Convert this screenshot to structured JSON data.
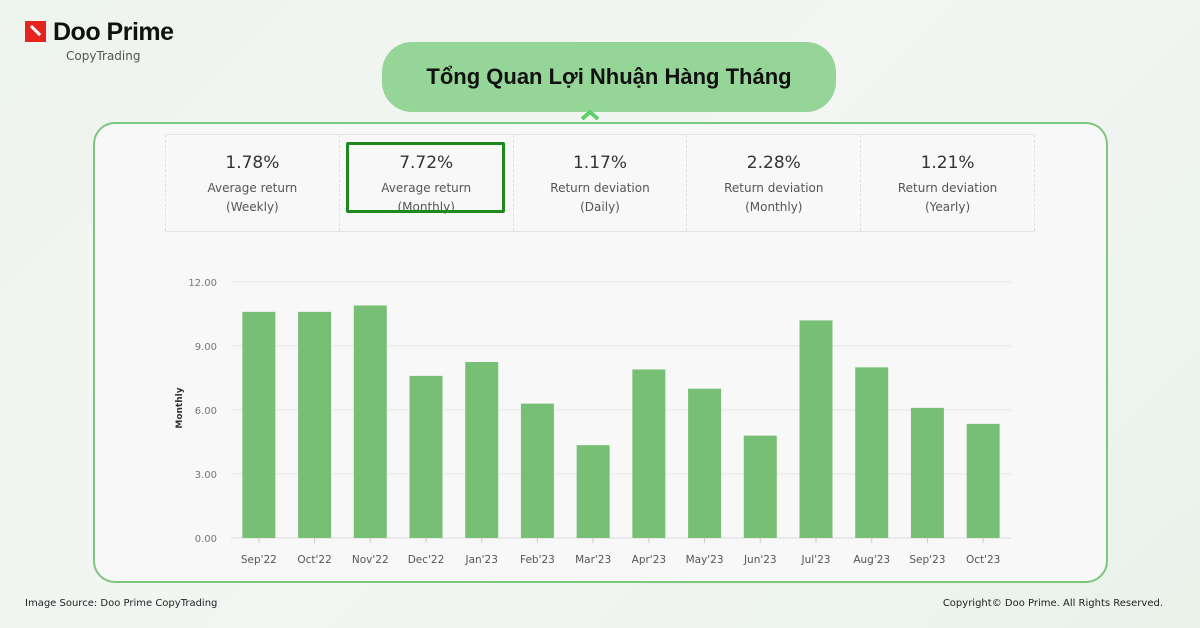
{
  "brand": {
    "name": "Doo Prime",
    "sub": "CopyTrading"
  },
  "title": "Tổng Quan Lợi Nhuận Hàng Tháng",
  "stats": [
    {
      "value": "1.78%",
      "label": "Average return (Weekly)",
      "selected": false
    },
    {
      "value": "7.72%",
      "label": "Average return (Monthly)",
      "selected": true
    },
    {
      "value": "1.17%",
      "label": "Return deviation (Daily)",
      "selected": false
    },
    {
      "value": "2.28%",
      "label": "Return deviation (Monthly)",
      "selected": false
    },
    {
      "value": "1.21%",
      "label": "Return deviation (Yearly)",
      "selected": false
    }
  ],
  "chart_data": {
    "type": "bar",
    "ylabel": "Monthly",
    "ylim": [
      0,
      12
    ],
    "yticks": [
      "0.00",
      "3.00",
      "6.00",
      "9.00",
      "12.00"
    ],
    "grid": true,
    "color": "#78bf76",
    "categories": [
      "Sep'22",
      "Oct'22",
      "Nov'22",
      "Dec'22",
      "Jan'23",
      "Feb'23",
      "Mar'23",
      "Apr'23",
      "May'23",
      "Jun'23",
      "Jul'23",
      "Aug'23",
      "Sep'23",
      "Oct'23"
    ],
    "values": [
      10.6,
      10.6,
      10.9,
      7.6,
      8.25,
      6.3,
      4.35,
      7.9,
      7.0,
      4.8,
      10.2,
      8.0,
      6.1,
      5.35
    ]
  },
  "footer": {
    "source": "Image Source: Doo Prime CopyTrading",
    "copyright": "Copyright© Doo Prime. All Rights Reserved."
  }
}
